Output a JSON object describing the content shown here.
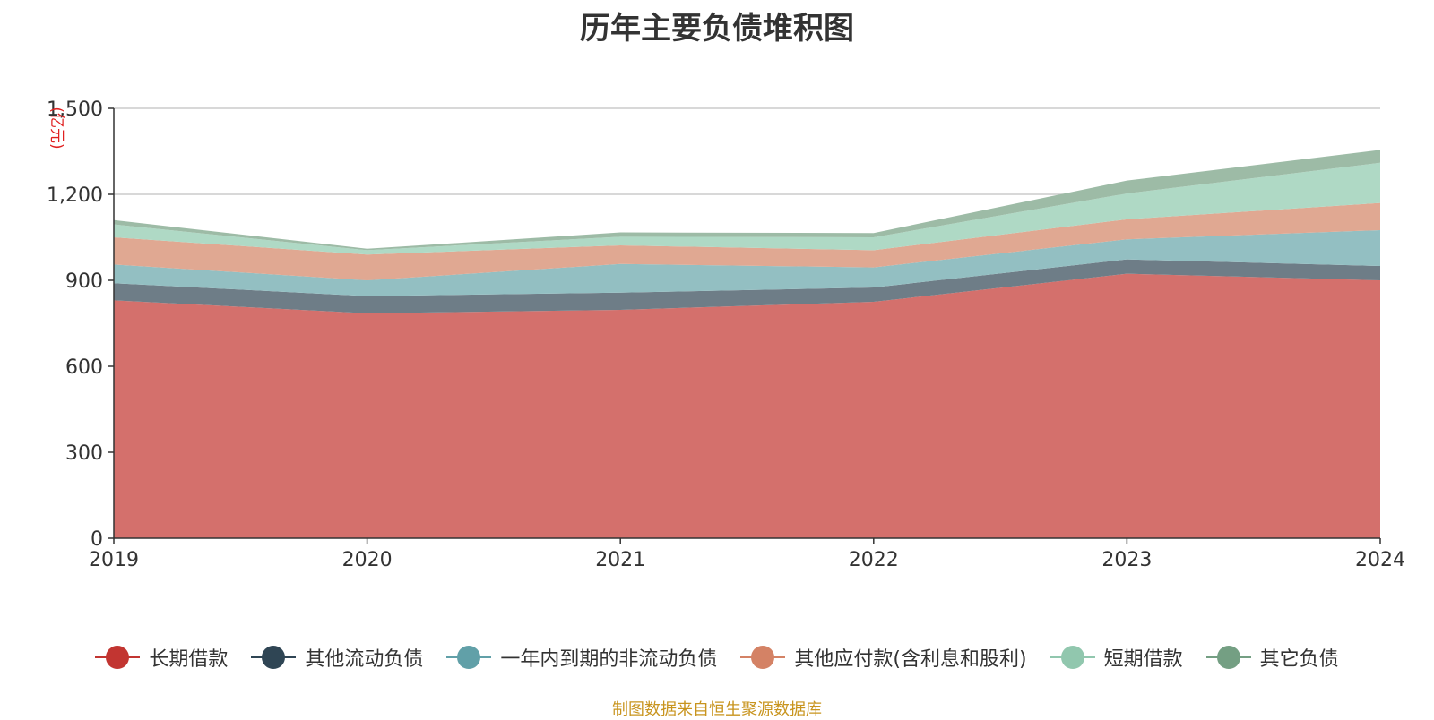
{
  "chart_data": {
    "type": "area",
    "stacked": true,
    "title": "历年主要负债堆积图",
    "unit_label": "(亿元)",
    "categories": [
      "2019",
      "2020",
      "2021",
      "2022",
      "2023",
      "2024"
    ],
    "ylim": [
      0,
      1500
    ],
    "yticks": [
      0,
      300,
      600,
      900,
      1200,
      1500
    ],
    "ytick_labels": [
      "0",
      "300",
      "600",
      "900",
      "1,200",
      "1,500"
    ],
    "grid": true,
    "legend_position": "bottom",
    "series": [
      {
        "name": "长期借款",
        "color": "#c23531",
        "area_color": "#d4706c",
        "values": [
          830,
          785,
          797,
          825,
          923,
          900
        ]
      },
      {
        "name": "其他流动负债",
        "color": "#2f4554",
        "area_color": "#6e7d87",
        "values": [
          60,
          60,
          60,
          50,
          50,
          50
        ]
      },
      {
        "name": "一年内到期的非流动负债",
        "color": "#61a0a8",
        "area_color": "#93bfc2",
        "values": [
          65,
          55,
          100,
          70,
          70,
          125
        ]
      },
      {
        "name": "其他应付款(含利息和股利)",
        "color": "#d48265",
        "area_color": "#e0a892",
        "values": [
          95,
          90,
          65,
          60,
          70,
          95
        ]
      },
      {
        "name": "短期借款",
        "color": "#91c7ae",
        "area_color": "#afd9c5",
        "values": [
          45,
          15,
          30,
          45,
          90,
          140
        ]
      },
      {
        "name": "其它负债",
        "color": "#749f83",
        "area_color": "#9dbba6",
        "values": [
          15,
          5,
          15,
          15,
          45,
          45
        ]
      }
    ]
  },
  "source_note": "制图数据来自恒生聚源数据库"
}
